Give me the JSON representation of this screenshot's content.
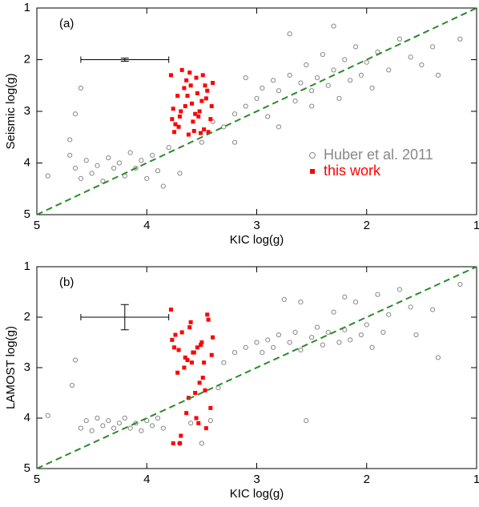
{
  "chart_data": [
    {
      "type": "scatter",
      "panel_label": "(a)",
      "x_label": "KIC log(g)",
      "y_label": "Seismic log(g)",
      "xlim": [
        5,
        1
      ],
      "ylim": [
        5,
        1
      ],
      "xticks": [
        5,
        4,
        3,
        2,
        1
      ],
      "yticks": [
        5,
        4,
        3,
        2,
        1
      ],
      "legend": "right",
      "identity_line_color": "#2a8a2a",
      "error_bar": {
        "x": 4.2,
        "y": 2.0,
        "xerr": 0.4,
        "yerr": 0.03
      },
      "series": [
        {
          "name": "Huber et al. 2011",
          "color": "#888888",
          "marker": "circle",
          "x": [
            4.9,
            4.7,
            4.65,
            4.6,
            4.55,
            4.5,
            4.45,
            4.4,
            4.35,
            4.3,
            4.25,
            4.2,
            4.15,
            4.1,
            4.05,
            4.0,
            3.95,
            3.9,
            3.85,
            4.6,
            4.65,
            4.7,
            3.8,
            3.7,
            3.5,
            3.4,
            3.3,
            3.2,
            3.1,
            3.0,
            2.95,
            2.9,
            2.85,
            2.8,
            2.7,
            2.65,
            2.6,
            2.55,
            2.5,
            2.45,
            2.4,
            2.35,
            2.3,
            2.25,
            2.2,
            2.15,
            2.1,
            2.05,
            2.0,
            1.95,
            1.9,
            1.8,
            1.7,
            1.6,
            1.5,
            1.4,
            1.35,
            1.15,
            2.7,
            2.3,
            3.1,
            2.8,
            3.2,
            2.5
          ],
          "values": [
            4.25,
            3.85,
            4.1,
            4.3,
            3.95,
            4.2,
            4.05,
            4.35,
            3.9,
            4.1,
            4.0,
            4.25,
            3.8,
            4.1,
            3.95,
            4.3,
            3.85,
            4.15,
            4.45,
            2.55,
            3.05,
            3.55,
            3.7,
            4.2,
            3.6,
            3.2,
            3.3,
            3.05,
            2.9,
            2.75,
            2.55,
            3.1,
            2.4,
            2.6,
            2.3,
            2.8,
            2.45,
            2.1,
            2.6,
            2.35,
            1.9,
            2.5,
            2.2,
            2.75,
            2.0,
            2.4,
            1.75,
            2.3,
            2.05,
            2.55,
            1.85,
            2.2,
            1.6,
            1.95,
            2.1,
            1.75,
            2.3,
            1.6,
            1.5,
            1.35,
            2.35,
            3.3,
            3.6,
            2.9
          ]
        },
        {
          "name": "this work",
          "color": "#ff0000",
          "marker": "square",
          "x": [
            3.78,
            3.75,
            3.72,
            3.7,
            3.68,
            3.65,
            3.62,
            3.6,
            3.58,
            3.55,
            3.52,
            3.5,
            3.48,
            3.45,
            3.42,
            3.4,
            3.76,
            3.71,
            3.66,
            3.61,
            3.56,
            3.51,
            3.46,
            3.41,
            3.74,
            3.64,
            3.54,
            3.44,
            3.69,
            3.59,
            3.49,
            3.77,
            3.57,
            3.47,
            3.63,
            3.53
          ],
          "values": [
            2.3,
            3.4,
            2.7,
            3.1,
            2.2,
            2.9,
            3.45,
            2.5,
            3.2,
            2.35,
            3.0,
            2.8,
            3.35,
            2.6,
            3.15,
            2.45,
            2.95,
            3.3,
            2.55,
            2.25,
            3.05,
            3.42,
            2.75,
            2.9,
            3.25,
            2.4,
            2.65,
            3.4,
            3.0,
            2.85,
            2.3,
            3.15,
            3.38,
            2.5,
            2.7,
            3.1
          ]
        }
      ]
    },
    {
      "type": "scatter",
      "panel_label": "(b)",
      "x_label": "KIC log(g)",
      "y_label": "LAMOST log(g)",
      "xlim": [
        5,
        1
      ],
      "ylim": [
        5,
        1
      ],
      "xticks": [
        5,
        4,
        3,
        2,
        1
      ],
      "yticks": [
        5,
        4,
        3,
        2,
        1
      ],
      "identity_line_color": "#2a8a2a",
      "error_bar": {
        "x": 4.2,
        "y": 2.0,
        "xerr": 0.4,
        "yerr": 0.25
      },
      "series": [
        {
          "color": "#888888",
          "marker": "circle",
          "x": [
            4.9,
            4.65,
            4.68,
            4.6,
            4.55,
            4.5,
            4.45,
            4.4,
            4.35,
            4.3,
            4.25,
            4.2,
            4.15,
            4.1,
            4.05,
            4.0,
            3.95,
            3.9,
            3.85,
            3.7,
            3.6,
            3.5,
            3.42,
            3.35,
            3.3,
            3.2,
            3.1,
            3.0,
            2.95,
            2.9,
            2.85,
            2.8,
            2.75,
            2.7,
            2.65,
            2.6,
            2.55,
            2.5,
            2.45,
            2.4,
            2.35,
            2.3,
            2.25,
            2.2,
            2.15,
            2.1,
            2.05,
            2.0,
            1.95,
            1.9,
            1.85,
            1.8,
            1.7,
            1.6,
            1.55,
            1.4,
            1.35,
            1.15,
            2.6,
            2.2
          ],
          "values": [
            3.95,
            2.85,
            3.35,
            4.2,
            4.05,
            4.25,
            4.0,
            4.15,
            4.05,
            4.2,
            4.1,
            4.0,
            4.2,
            4.1,
            4.25,
            4.05,
            4.15,
            4.0,
            4.2,
            4.5,
            4.1,
            4.5,
            4.05,
            3.4,
            2.9,
            2.7,
            2.6,
            2.5,
            2.7,
            2.45,
            2.6,
            2.35,
            1.65,
            2.5,
            2.3,
            2.65,
            4.05,
            2.4,
            2.2,
            2.55,
            2.3,
            1.9,
            2.5,
            2.25,
            2.45,
            1.7,
            2.35,
            2.15,
            2.6,
            1.55,
            2.3,
            1.95,
            1.45,
            1.8,
            2.35,
            1.85,
            2.8,
            1.35,
            1.7,
            1.6
          ]
        },
        {
          "color": "#ff0000",
          "marker": "square",
          "x": [
            3.78,
            3.75,
            3.72,
            3.7,
            3.68,
            3.65,
            3.62,
            3.6,
            3.58,
            3.55,
            3.52,
            3.5,
            3.48,
            3.45,
            3.42,
            3.4,
            3.76,
            3.71,
            3.66,
            3.61,
            3.56,
            3.51,
            3.46,
            3.41,
            3.74,
            3.64,
            3.54,
            3.44,
            3.69,
            3.59,
            3.49,
            3.77,
            3.57,
            3.47,
            3.63,
            3.53
          ],
          "values": [
            1.85,
            2.6,
            3.1,
            4.5,
            2.3,
            2.8,
            3.6,
            2.1,
            2.7,
            4.0,
            3.3,
            2.5,
            2.9,
            1.95,
            3.8,
            2.4,
            4.5,
            2.65,
            3.0,
            2.2,
            3.5,
            2.55,
            4.2,
            2.75,
            2.35,
            3.9,
            2.6,
            2.05,
            4.35,
            2.9,
            3.2,
            2.45,
            2.7,
            3.45,
            2.85,
            4.1
          ]
        }
      ]
    }
  ]
}
